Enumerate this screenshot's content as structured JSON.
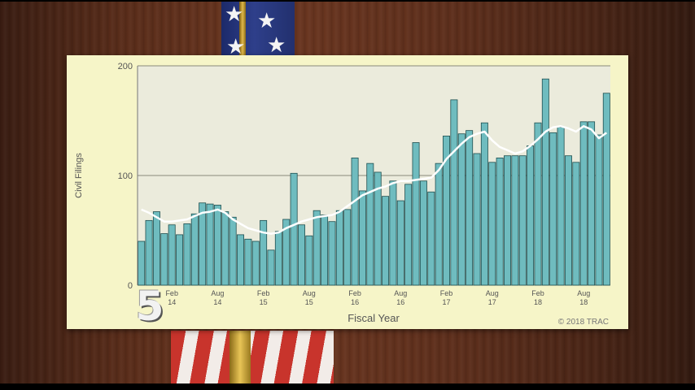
{
  "logo_text": "5",
  "colors": {
    "bar_fill": "#6fbcbf",
    "bar_stroke": "#1f4f50",
    "trend_line": "#ffffff",
    "plot_bg": "#ebebdc",
    "panel_bg": "#f6f5c8",
    "gridline": "#8a8a7a"
  },
  "chart_data": {
    "type": "bar",
    "ylabel": "Civil Filings",
    "xlabel": "Fiscal Year",
    "credit": "© 2018 TRAC",
    "ylim": [
      0,
      200
    ],
    "yticks": [
      0,
      100,
      200
    ],
    "grid": true,
    "x_tick_labels": [
      {
        "month": "Feb",
        "year": "14",
        "index": 4
      },
      {
        "month": "Aug",
        "year": "14",
        "index": 10
      },
      {
        "month": "Feb",
        "year": "15",
        "index": 16
      },
      {
        "month": "Aug",
        "year": "15",
        "index": 22
      },
      {
        "month": "Feb",
        "year": "16",
        "index": 28
      },
      {
        "month": "Aug",
        "year": "16",
        "index": 34
      },
      {
        "month": "Feb",
        "year": "17",
        "index": 40
      },
      {
        "month": "Aug",
        "year": "17",
        "index": 46
      },
      {
        "month": "Feb",
        "year": "18",
        "index": 52
      },
      {
        "month": "Aug",
        "year": "18",
        "index": 58
      }
    ],
    "series": [
      {
        "values": [
          40,
          59,
          67,
          47,
          55,
          46,
          56,
          65,
          75,
          74,
          73,
          67,
          62,
          46,
          42,
          40,
          59,
          32,
          49,
          60,
          102,
          55,
          45,
          68,
          64,
          58,
          68,
          69,
          116,
          86,
          111,
          103,
          81,
          95,
          77,
          92,
          130,
          95,
          85,
          111,
          136,
          169,
          138,
          141,
          120,
          148,
          112,
          116,
          118,
          118,
          118,
          127,
          148,
          188,
          139,
          144,
          118,
          112,
          149,
          149,
          137,
          175
        ]
      },
      {
        "type": "line",
        "values": [
          69,
          66,
          62,
          58,
          58,
          59,
          60,
          63,
          66,
          67,
          69,
          66,
          60,
          56,
          52,
          50,
          48,
          47,
          48,
          52,
          55,
          58,
          60,
          62,
          63,
          64,
          67,
          72,
          77,
          82,
          85,
          88,
          90,
          93,
          95,
          95,
          96,
          97,
          98,
          105,
          115,
          122,
          129,
          135,
          138,
          140,
          132,
          126,
          123,
          120,
          122,
          127,
          133,
          140,
          144,
          145,
          143,
          140,
          145,
          142,
          134,
          139
        ]
      }
    ]
  }
}
